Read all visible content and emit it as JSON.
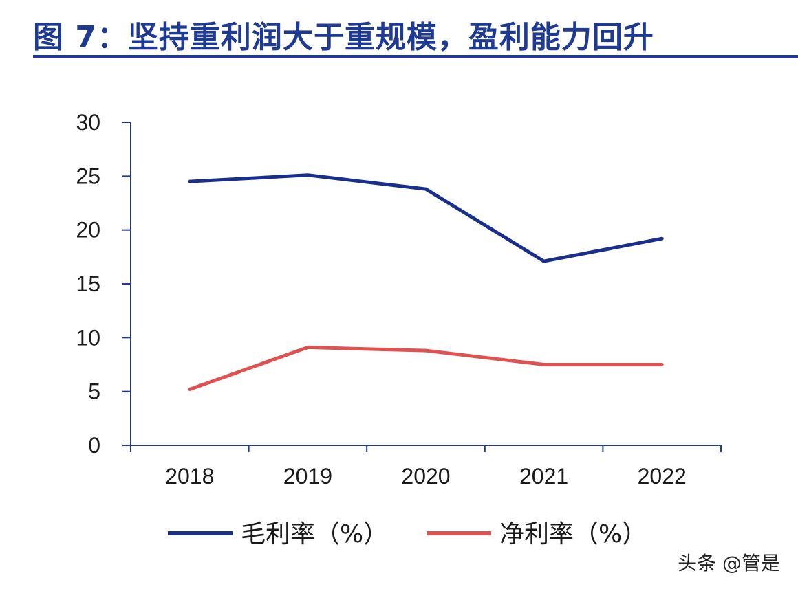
{
  "title": "图 7：坚持重利润大于重规模，盈利能力回升",
  "watermark": "头条 @管是",
  "colors": {
    "title": "#1f3a93",
    "axis": "#1f3a93"
  },
  "chart_data": {
    "type": "line",
    "categories": [
      "2018",
      "2019",
      "2020",
      "2021",
      "2022"
    ],
    "series": [
      {
        "name": "毛利率（%）",
        "color": "#1a2f8c",
        "values": [
          24.5,
          25.1,
          23.8,
          17.1,
          19.2
        ]
      },
      {
        "name": "净利率（%）",
        "color": "#e05252",
        "values": [
          5.2,
          9.1,
          8.8,
          7.5,
          7.5
        ]
      }
    ],
    "ylim": [
      0,
      30
    ],
    "yticks": [
      "0",
      "5",
      "10",
      "15",
      "20",
      "25",
      "30"
    ],
    "grid": false,
    "legend_position": "bottom"
  }
}
